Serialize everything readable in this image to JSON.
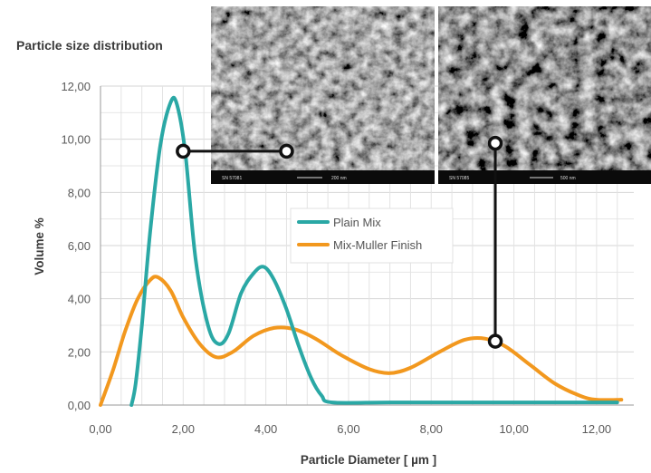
{
  "chart_data": {
    "type": "line",
    "title": "Particle size distribution",
    "xlabel": "Particle Diameter [ µm ]",
    "ylabel": "Volume %",
    "xlim": [
      0,
      12.9
    ],
    "ylim": [
      0,
      12
    ],
    "xticks": [
      "0,00",
      "2,00",
      "4,00",
      "6,00",
      "8,00",
      "10,00",
      "12,00"
    ],
    "yticks": [
      "0,00",
      "2,00",
      "4,00",
      "6,00",
      "8,00",
      "10,00",
      "12,00"
    ],
    "grid": true,
    "legend_position": "center",
    "series": [
      {
        "name": "Plain Mix",
        "color": "#2aa8a5",
        "points": [
          [
            0.75,
            0.0
          ],
          [
            0.85,
            0.8
          ],
          [
            1.0,
            3.0
          ],
          [
            1.2,
            6.5
          ],
          [
            1.45,
            9.8
          ],
          [
            1.7,
            11.4
          ],
          [
            1.85,
            11.3
          ],
          [
            2.05,
            9.5
          ],
          [
            2.3,
            5.5
          ],
          [
            2.6,
            3.0
          ],
          [
            2.85,
            2.3
          ],
          [
            3.1,
            2.7
          ],
          [
            3.4,
            4.2
          ],
          [
            3.7,
            4.95
          ],
          [
            3.95,
            5.2
          ],
          [
            4.2,
            4.7
          ],
          [
            4.5,
            3.6
          ],
          [
            4.8,
            2.2
          ],
          [
            5.1,
            1.0
          ],
          [
            5.35,
            0.35
          ],
          [
            5.6,
            0.1
          ],
          [
            7.0,
            0.1
          ],
          [
            9.0,
            0.1
          ],
          [
            11.0,
            0.1
          ],
          [
            12.5,
            0.1
          ]
        ]
      },
      {
        "name": "Mix-Muller Finish",
        "color": "#f2981e",
        "points": [
          [
            0.0,
            0.0
          ],
          [
            0.3,
            1.3
          ],
          [
            0.6,
            2.8
          ],
          [
            0.9,
            4.0
          ],
          [
            1.2,
            4.7
          ],
          [
            1.4,
            4.8
          ],
          [
            1.7,
            4.3
          ],
          [
            2.0,
            3.3
          ],
          [
            2.4,
            2.3
          ],
          [
            2.8,
            1.8
          ],
          [
            3.2,
            2.0
          ],
          [
            3.7,
            2.6
          ],
          [
            4.2,
            2.9
          ],
          [
            4.7,
            2.85
          ],
          [
            5.2,
            2.5
          ],
          [
            5.8,
            1.9
          ],
          [
            6.5,
            1.35
          ],
          [
            7.0,
            1.2
          ],
          [
            7.5,
            1.4
          ],
          [
            8.2,
            2.0
          ],
          [
            8.8,
            2.45
          ],
          [
            9.3,
            2.5
          ],
          [
            9.8,
            2.2
          ],
          [
            10.4,
            1.5
          ],
          [
            11.0,
            0.8
          ],
          [
            11.6,
            0.35
          ],
          [
            12.0,
            0.2
          ],
          [
            12.6,
            0.2
          ]
        ]
      }
    ],
    "markers": [
      {
        "x1": 2.0,
        "y1": 9.55,
        "x2": 4.5,
        "y2": 9.55
      },
      {
        "x1": 9.55,
        "y1": 9.85,
        "x2": 9.55,
        "y2": 2.4
      }
    ]
  },
  "sem_images": [
    {
      "caption_left": "SN 57081",
      "caption_right": "200 nm"
    },
    {
      "caption_left": "SN 57085",
      "caption_right": "500 nm"
    }
  ]
}
